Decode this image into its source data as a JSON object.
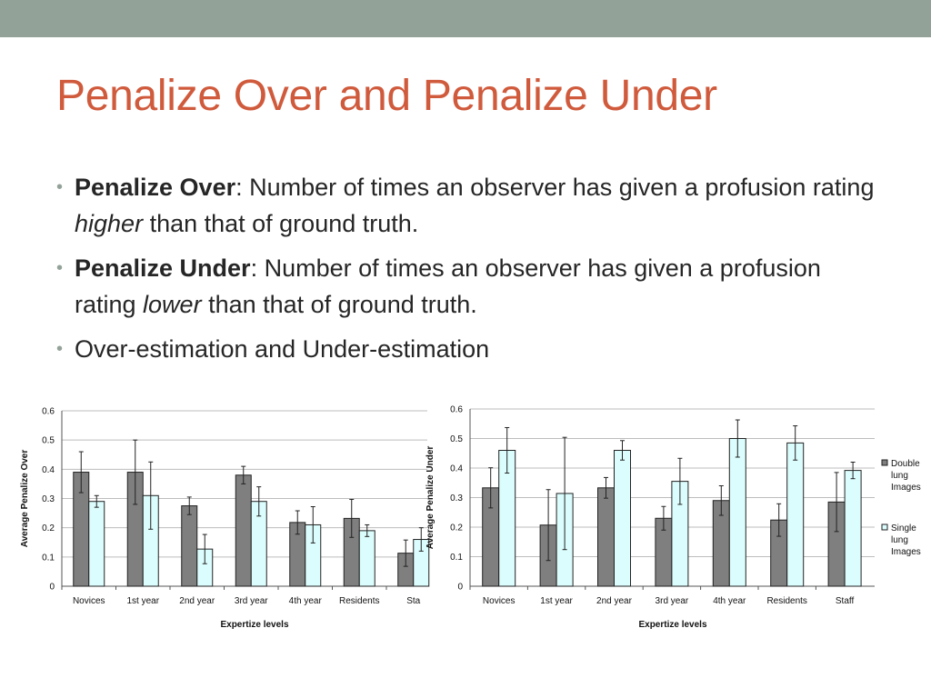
{
  "slide": {
    "title": "Penalize Over and Penalize Under",
    "bullets": [
      {
        "bold": "Penalize Over",
        "pre": ": Number of times an observer has given a profusion rating ",
        "em": "higher",
        "post": " than that of ground truth."
      },
      {
        "bold": "Penalize Under",
        "pre": ": Number of times an observer has given a profusion rating ",
        "em": "lower",
        "post": " than that of ground truth."
      },
      {
        "bold": "",
        "pre": "Over-estimation and Under-estimation",
        "em": "",
        "post": ""
      }
    ]
  },
  "chart_data": [
    {
      "type": "bar",
      "title": "",
      "xlabel": "Expertize levels",
      "ylabel": "Average Penalize Over",
      "ylim": [
        0,
        0.6
      ],
      "yticks": [
        "0",
        "0.1",
        "0.2",
        "0.3",
        "0.4",
        "0.5",
        "0.6"
      ],
      "grid": true,
      "categories": [
        "Novices",
        "1st year",
        "2nd year",
        "3rd year",
        "4th year",
        "Residents",
        "Sta"
      ],
      "series": [
        {
          "color": "#7f7f7f",
          "values": [
            0.39,
            0.39,
            0.275,
            0.38,
            0.218,
            0.232,
            0.113
          ],
          "errors": [
            0.07,
            0.11,
            0.03,
            0.03,
            0.04,
            0.065,
            0.045
          ]
        },
        {
          "color": "#dcfdfd",
          "values": [
            0.29,
            0.31,
            0.127,
            0.29,
            0.21,
            0.19,
            0.16
          ],
          "errors": [
            0.02,
            0.115,
            0.05,
            0.05,
            0.062,
            0.02,
            0.04
          ]
        }
      ]
    },
    {
      "type": "bar",
      "title": "",
      "xlabel": "Expertize levels",
      "ylabel": "Average Penalize Under",
      "ylim": [
        0,
        0.6
      ],
      "yticks": [
        "0",
        "0.1",
        "0.2",
        "0.3",
        "0.4",
        "0.5",
        "0.6"
      ],
      "grid": true,
      "legend_position": "right",
      "categories": [
        "Novices",
        "1st year",
        "2nd year",
        "3rd year",
        "4th year",
        "Residents",
        "Staff"
      ],
      "series": [
        {
          "name": "Double lung Images",
          "name_lines": [
            "Double",
            "lung",
            "Images"
          ],
          "color": "#7f7f7f",
          "values": [
            0.333,
            0.207,
            0.333,
            0.23,
            0.29,
            0.224,
            0.285
          ],
          "errors": [
            0.068,
            0.12,
            0.035,
            0.04,
            0.05,
            0.055,
            0.1
          ]
        },
        {
          "name": "Single lung Images",
          "name_lines": [
            "Single",
            "lung",
            "Images"
          ],
          "color": "#dcfdfd",
          "values": [
            0.46,
            0.314,
            0.46,
            0.355,
            0.5,
            0.485,
            0.392
          ],
          "errors": [
            0.077,
            0.19,
            0.033,
            0.078,
            0.063,
            0.058,
            0.028
          ]
        }
      ]
    }
  ]
}
